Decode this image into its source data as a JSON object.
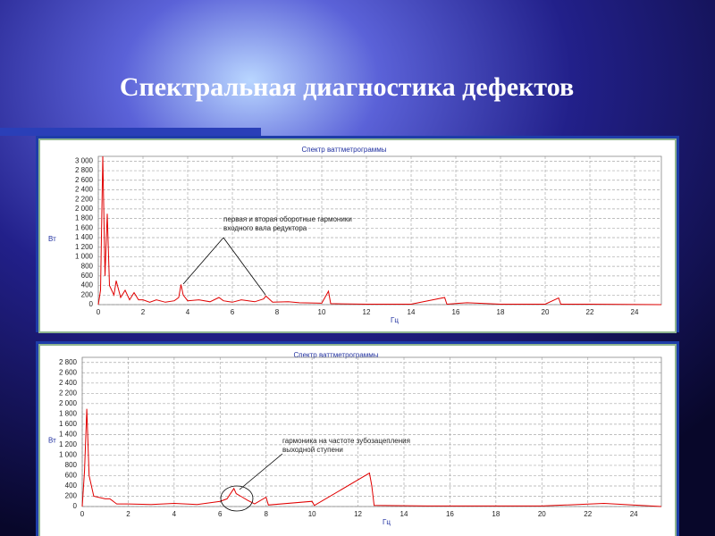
{
  "slide": {
    "title": "Спектральная диагностика дефектов"
  },
  "chart_data": [
    {
      "type": "line",
      "title": "Спектр ваттметрограммы",
      "y_label": "Вт",
      "x_label": "Гц",
      "color": "#e00000",
      "grid": true,
      "annotation": [
        "первая и вторая оборотные гармоники",
        "входного вала редуктора"
      ],
      "xlim": [
        0,
        25.2
      ],
      "ylim": [
        0,
        3100
      ],
      "xticks": [
        0,
        2,
        4,
        6,
        8,
        10,
        12,
        14,
        16,
        18,
        20,
        22,
        24
      ],
      "yticks": [
        0,
        200,
        400,
        600,
        800,
        {
          "value": 1000,
          "label": "1 000"
        },
        {
          "value": 1200,
          "label": "1 200"
        },
        {
          "value": 1400,
          "label": "1 400"
        },
        {
          "value": 1600,
          "label": "1 600"
        },
        {
          "value": 1800,
          "label": "1 800"
        },
        {
          "value": 2000,
          "label": "2 000"
        },
        {
          "value": 2200,
          "label": "2 200"
        },
        {
          "value": 2400,
          "label": "2 400"
        },
        {
          "value": 2600,
          "label": "2 600"
        },
        {
          "value": 2800,
          "label": "2 800"
        },
        {
          "value": 3000,
          "label": "3 000"
        }
      ],
      "x": [
        0,
        0.1,
        0.2,
        0.3,
        0.4,
        0.5,
        0.7,
        0.8,
        1,
        1.2,
        1.4,
        1.6,
        1.8,
        2,
        2.3,
        2.6,
        3,
        3.4,
        3.6,
        3.7,
        3.8,
        4,
        4.5,
        5,
        5.4,
        5.6,
        6,
        6.4,
        7,
        7.4,
        7.5,
        7.8,
        8.5,
        9,
        10,
        10.3,
        10.4,
        12,
        14,
        15.5,
        15.6,
        16.5,
        18,
        20,
        20.6,
        20.7,
        22,
        25.2
      ],
      "values": [
        0,
        300,
        3100,
        600,
        1900,
        400,
        200,
        500,
        150,
        300,
        100,
        250,
        100,
        100,
        50,
        100,
        50,
        80,
        150,
        420,
        200,
        80,
        100,
        60,
        150,
        80,
        50,
        100,
        60,
        120,
        180,
        50,
        60,
        40,
        30,
        280,
        20,
        10,
        10,
        150,
        10,
        40,
        10,
        10,
        140,
        10,
        10,
        0
      ]
    },
    {
      "type": "line",
      "title": "Спектр ваттметрограммы",
      "y_label": "Вт",
      "x_label": "Гц",
      "color": "#e00000",
      "grid": true,
      "annotation": [
        "гармоника на частоте зубозацепления",
        "выходной ступени"
      ],
      "xlim": [
        0,
        25.2
      ],
      "ylim": [
        0,
        2900
      ],
      "xticks": [
        0,
        2,
        4,
        6,
        8,
        10,
        12,
        14,
        16,
        18,
        20,
        22,
        24
      ],
      "yticks": [
        0,
        200,
        400,
        600,
        800,
        {
          "value": 1000,
          "label": "1 000"
        },
        {
          "value": 1200,
          "label": "1 200"
        },
        {
          "value": 1400,
          "label": "1 400"
        },
        {
          "value": 1600,
          "label": "1 600"
        },
        {
          "value": 1800,
          "label": "1 800"
        },
        {
          "value": 2000,
          "label": "2 000"
        },
        {
          "value": 2200,
          "label": "2 200"
        },
        {
          "value": 2400,
          "label": "2 400"
        },
        {
          "value": 2600,
          "label": "2 600"
        },
        {
          "value": 2800,
          "label": "2 800"
        }
      ],
      "x": [
        0,
        0.1,
        0.2,
        0.3,
        0.5,
        1,
        1.2,
        1.5,
        2,
        3,
        4,
        5,
        6,
        6.3,
        6.6,
        6.7,
        6.9,
        7.2,
        7.5,
        8,
        8.1,
        10,
        10.1,
        12.5,
        12.6,
        12.7,
        15,
        20,
        22.7,
        25.2
      ],
      "values": [
        0,
        700,
        1900,
        600,
        200,
        150,
        150,
        50,
        50,
        40,
        60,
        40,
        100,
        150,
        350,
        250,
        200,
        120,
        50,
        180,
        30,
        100,
        20,
        650,
        400,
        20,
        10,
        10,
        60,
        0
      ]
    }
  ]
}
